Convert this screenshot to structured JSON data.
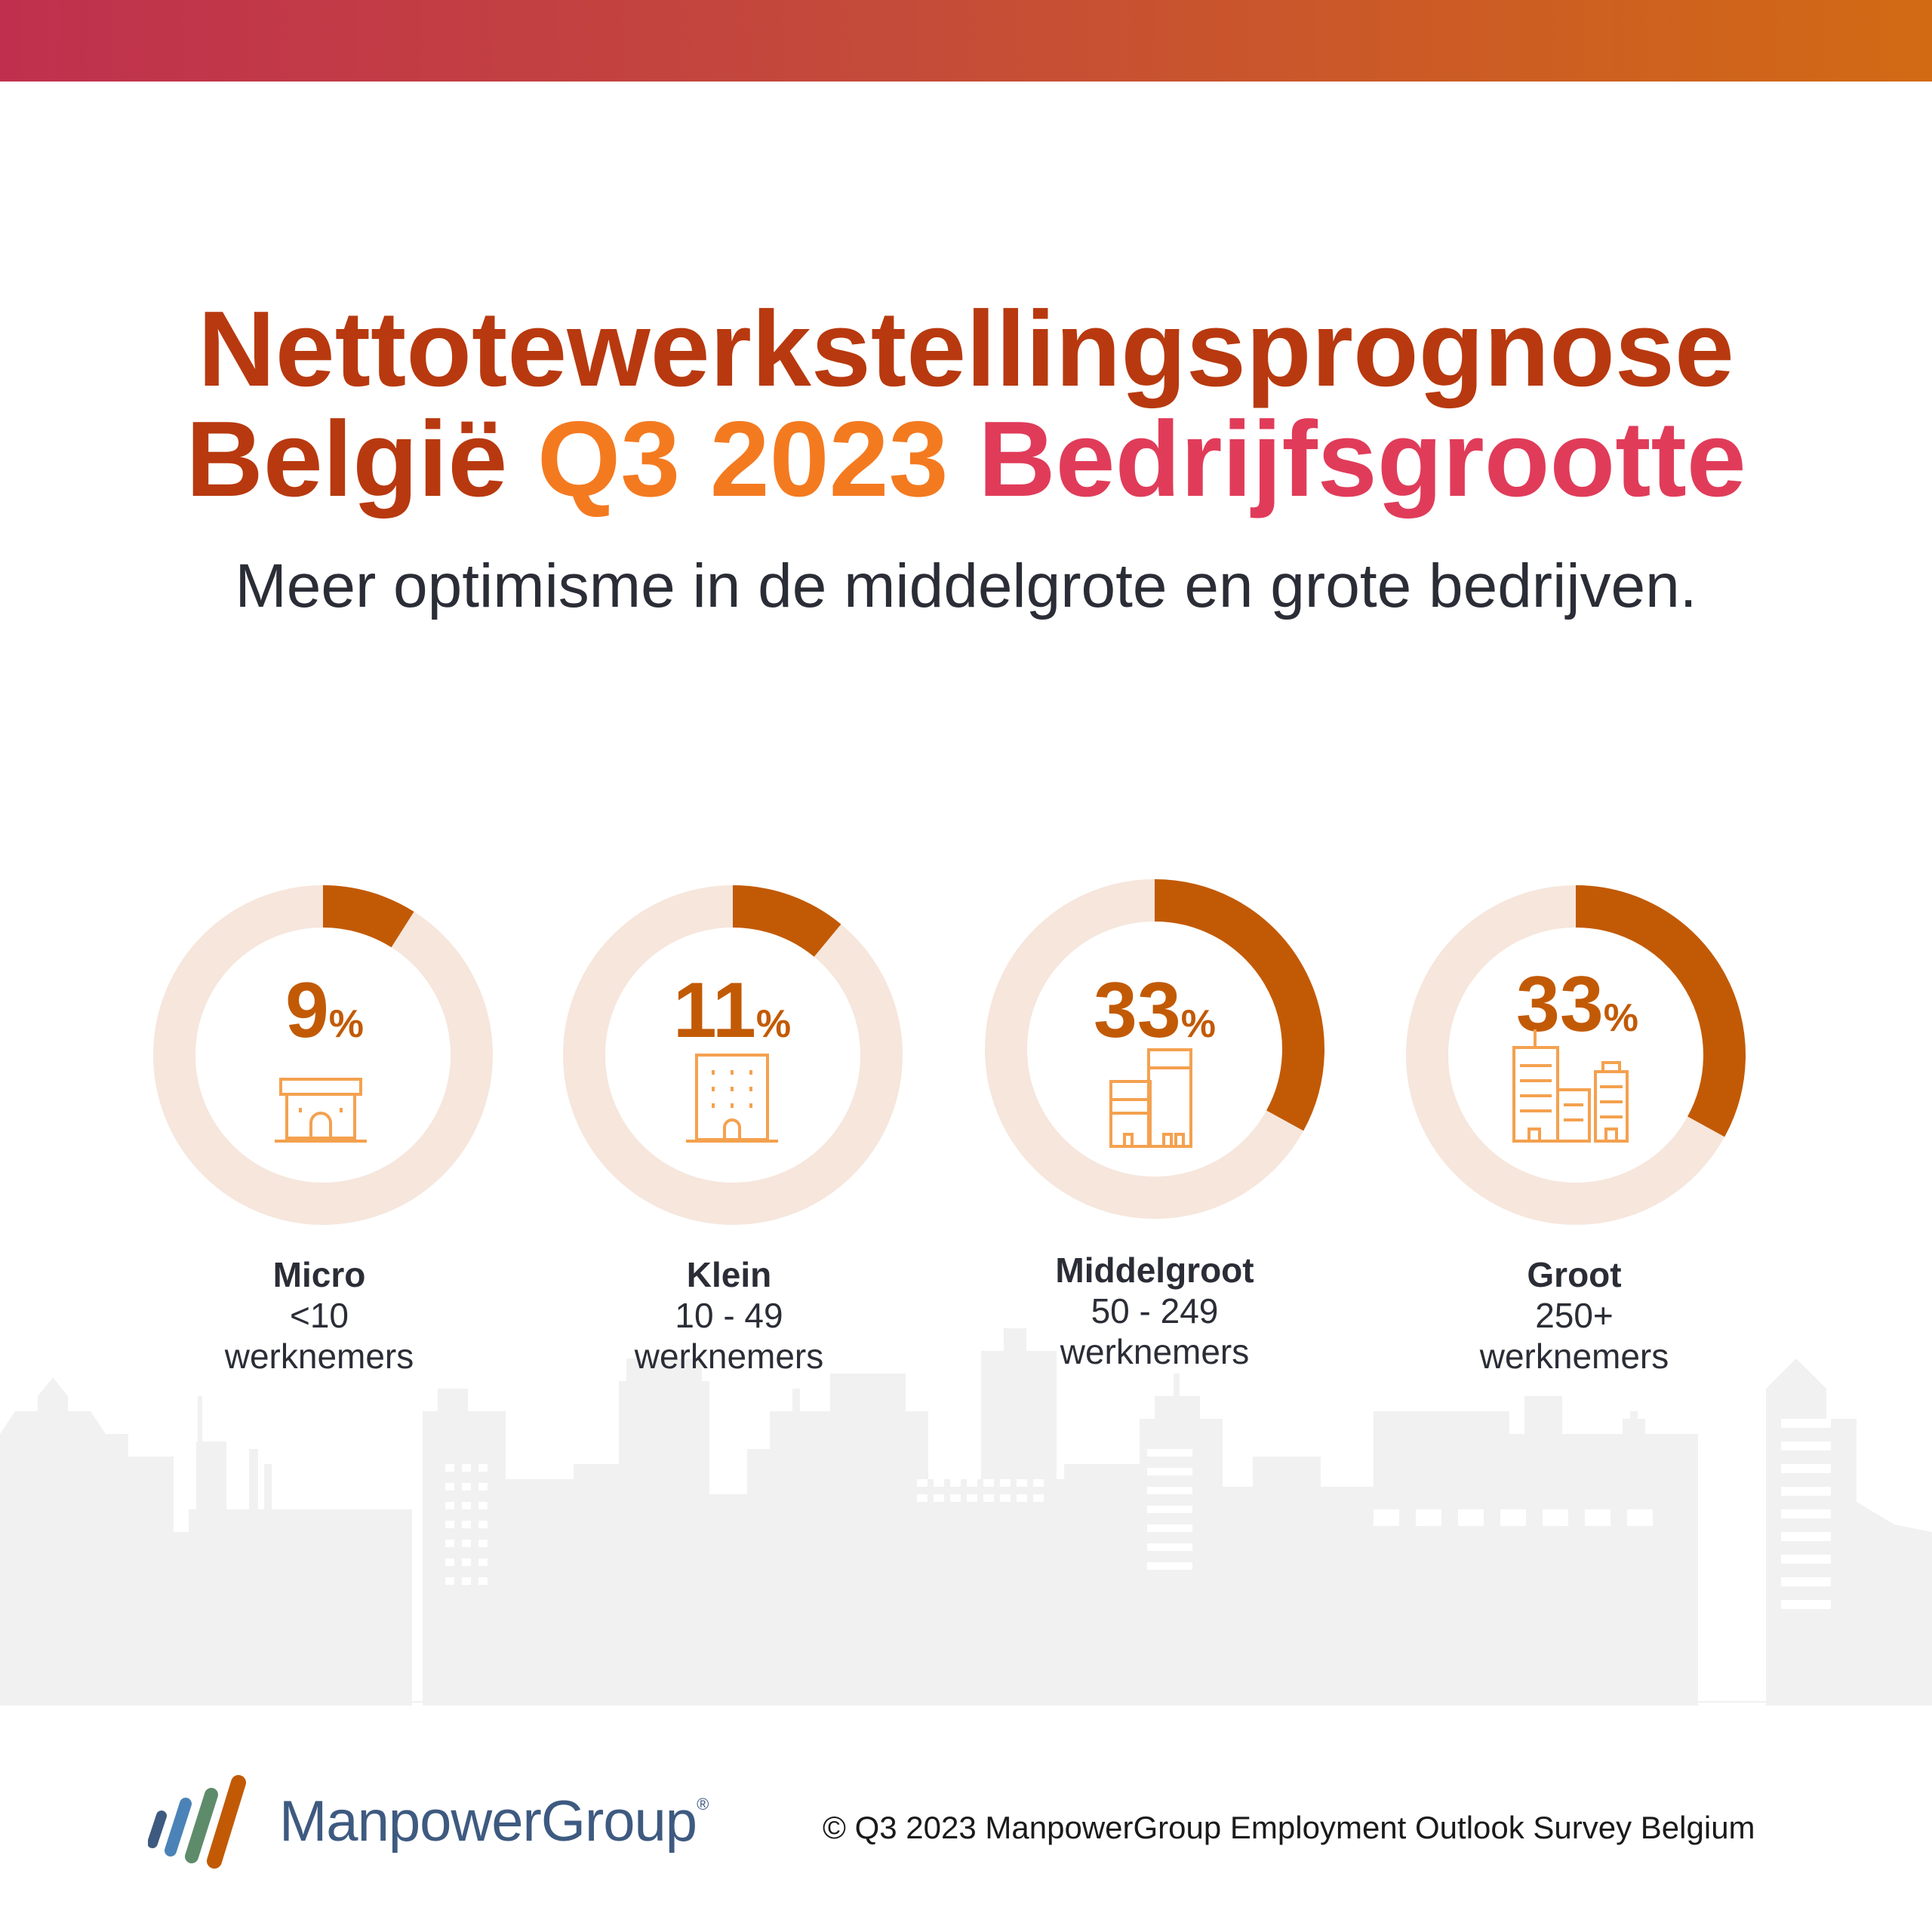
{
  "header": {
    "title_line1": "Nettotewerkstellingsprognose",
    "title_country": "België",
    "title_period": "Q3 2023",
    "title_topic": "Bedrijfsgrootte",
    "subtitle": "Meer optimisme in de middelgrote en grote bedrijven."
  },
  "chart_data": {
    "type": "pie",
    "series": [
      {
        "name": "Micro",
        "category": "Micro",
        "range": "<10",
        "unit": "werknemers",
        "value": 9,
        "percent_label": "9",
        "icon": "shop-icon"
      },
      {
        "name": "Klein",
        "category": "Klein",
        "range": "10 - 49",
        "unit": "werknemers",
        "value": 11,
        "percent_label": "11",
        "icon": "office-building-icon"
      },
      {
        "name": "Middelgroot",
        "category": "Middelgroot",
        "range": "50 - 249",
        "unit": "werknemers",
        "value": 33,
        "percent_label": "33",
        "icon": "two-buildings-icon"
      },
      {
        "name": "Groot",
        "category": "Groot",
        "range": "250+",
        "unit": "werknemers",
        "value": 33,
        "percent_label": "33",
        "icon": "city-buildings-icon"
      }
    ],
    "percent_symbol": "%",
    "colors": {
      "value": "#c25a05",
      "track": "#f6e6dc",
      "icon": "#f4a14f"
    }
  },
  "footer": {
    "brand": "ManpowerGroup",
    "registered": "®",
    "copyright": "© Q3 2023 ManpowerGroup Employment Outlook Survey Belgium"
  },
  "colors": {
    "gradient_start": "#c0304e",
    "gradient_end": "#d26a14",
    "title": "#b8390f",
    "period": "#f47a20",
    "topic": "#e03c5a"
  }
}
